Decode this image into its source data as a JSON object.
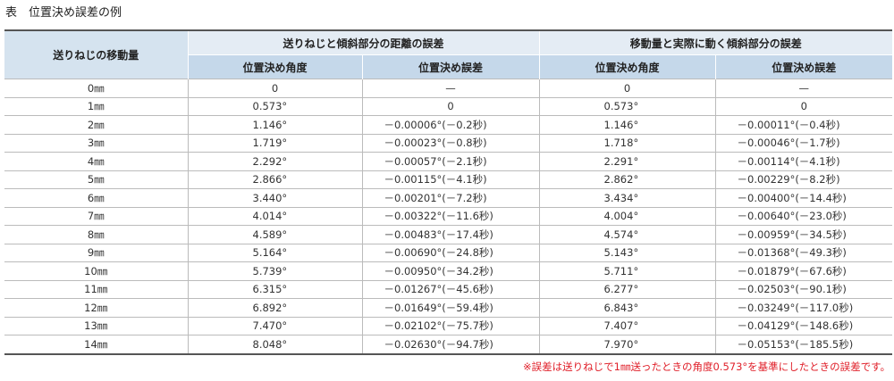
{
  "title": "表　位置決め誤差の例",
  "table": {
    "header": {
      "first": "送りねじの移動量",
      "groups": [
        "送りねじと傾斜部分の距離の誤差",
        "移動量と実際に動く傾斜部分の誤差"
      ],
      "columns": [
        "位置決め角度",
        "位置決め誤差",
        "位置決め角度",
        "位置決め誤差"
      ]
    },
    "rows": [
      [
        "0㎜",
        "0",
        "—",
        "0",
        "—"
      ],
      [
        "1㎜",
        "0.573°",
        "0",
        "0.573°",
        "0"
      ],
      [
        "2㎜",
        "1.146°",
        "－0.00006°(－0.2秒)",
        "1.146°",
        "－0.00011°(－0.4秒)"
      ],
      [
        "3㎜",
        "1.719°",
        "－0.00023°(－0.8秒)",
        "1.718°",
        "－0.00046°(－1.7秒)"
      ],
      [
        "4㎜",
        "2.292°",
        "－0.00057°(－2.1秒)",
        "2.291°",
        "－0.00114°(－4.1秒)"
      ],
      [
        "5㎜",
        "2.866°",
        "－0.00115°(－4.1秒)",
        "2.862°",
        "－0.00229°(－8.2秒)"
      ],
      [
        "6㎜",
        "3.440°",
        "－0.00201°(－7.2秒)",
        "3.434°",
        "－0.00400°(－14.4秒)"
      ],
      [
        "7㎜",
        "4.014°",
        "－0.00322°(－11.6秒)",
        "4.004°",
        "－0.00640°(－23.0秒)"
      ],
      [
        "8㎜",
        "4.589°",
        "－0.00483°(－17.4秒)",
        "4.574°",
        "－0.00959°(－34.5秒)"
      ],
      [
        "9㎜",
        "5.164°",
        "－0.00690°(－24.8秒)",
        "5.143°",
        "－0.01368°(－49.3秒)"
      ],
      [
        "10㎜",
        "5.739°",
        "－0.00950°(－34.2秒)",
        "5.711°",
        "－0.01879°(－67.6秒)"
      ],
      [
        "11㎜",
        "6.315°",
        "－0.01267°(－45.6秒)",
        "6.277°",
        "－0.02503°(－90.1秒)"
      ],
      [
        "12㎜",
        "6.892°",
        "－0.01649°(－59.4秒)",
        "6.843°",
        "－0.03249°(－117.0秒)"
      ],
      [
        "13㎜",
        "7.470°",
        "－0.02102°(－75.7秒)",
        "7.407°",
        "－0.04129°(－148.6秒)"
      ],
      [
        "14㎜",
        "8.048°",
        "－0.02630°(－94.7秒)",
        "7.970°",
        "－0.05153°(－185.5秒)"
      ]
    ]
  },
  "footnote": "※誤差は送りねじで1㎜送ったときの角度0.573°を基準にしたときの誤差です。"
}
